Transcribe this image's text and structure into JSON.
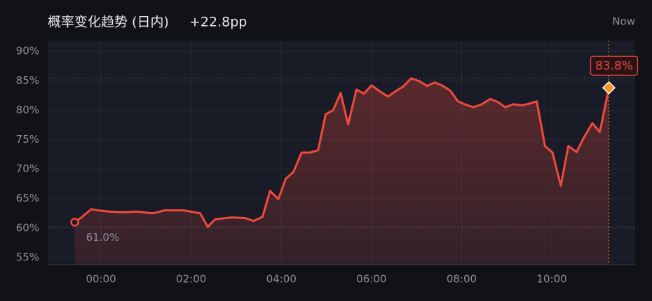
{
  "chart_data": {
    "type": "area",
    "title": "概率变化趋势 (日内)",
    "subtitle": "+22.8pp",
    "now_label": "Now",
    "x": [
      -35,
      -26,
      -13,
      -4,
      10,
      29,
      48,
      69,
      85,
      110,
      132,
      142,
      152,
      174,
      192,
      203,
      215,
      225,
      236,
      246,
      256,
      267,
      278,
      289,
      299,
      309,
      319,
      329,
      340,
      350,
      360,
      370,
      382,
      392,
      402,
      413,
      424,
      434,
      444,
      454,
      465,
      475,
      486,
      496,
      507,
      518,
      528,
      538,
      549,
      560,
      570,
      580,
      591,
      601,
      612,
      622,
      633,
      643,
      654,
      664,
      676
    ],
    "series": [
      {
        "name": "概率",
        "color": "#ef4a3c",
        "values": [
          61.0,
          61.8,
          63.2,
          63.0,
          62.8,
          62.7,
          62.8,
          62.5,
          63.0,
          63.0,
          62.5,
          60.2,
          61.5,
          61.8,
          61.7,
          61.2,
          61.9,
          66.3,
          64.9,
          68.4,
          69.5,
          72.8,
          72.8,
          73.2,
          79.3,
          80.0,
          82.9,
          77.6,
          83.5,
          82.8,
          84.2,
          83.3,
          82.3,
          83.2,
          84.0,
          85.4,
          84.9,
          84.1,
          84.7,
          84.2,
          83.3,
          81.5,
          80.9,
          80.5,
          81.0,
          81.9,
          81.4,
          80.5,
          81.0,
          80.8,
          81.1,
          81.5,
          73.9,
          72.8,
          67.2,
          73.9,
          72.9,
          75.4,
          77.8,
          76.3,
          83.8
        ],
        "value_labels": [
          "61.0%",
          null,
          null,
          null,
          null,
          null,
          null,
          null,
          null,
          null,
          null,
          null,
          null,
          null,
          null,
          null,
          null,
          null,
          null,
          null,
          null,
          null,
          null,
          null,
          null,
          null,
          null,
          null,
          null,
          null,
          null,
          null,
          null,
          null,
          null,
          null,
          null,
          null,
          null,
          null,
          null,
          null,
          null,
          null,
          null,
          null,
          null,
          null,
          null,
          null,
          null,
          null,
          null,
          null,
          null,
          null,
          null,
          null,
          null,
          null,
          "83.8%"
        ]
      }
    ],
    "xlim": [
      -71,
      711
    ],
    "xticks": [
      {
        "value": 0,
        "label": "00:00"
      },
      {
        "value": 120,
        "label": "02:00"
      },
      {
        "value": 240,
        "label": "04:00"
      },
      {
        "value": 360,
        "label": "06:00"
      },
      {
        "value": 480,
        "label": "08:00"
      },
      {
        "value": 600,
        "label": "10:00"
      }
    ],
    "ylim": [
      53.8,
      91.8
    ],
    "yticks": [
      {
        "value": 55,
        "label": "55%"
      },
      {
        "value": 60,
        "label": "60%"
      },
      {
        "value": 65,
        "label": "65%"
      },
      {
        "value": 70,
        "label": "70%"
      },
      {
        "value": 75,
        "label": "75%"
      },
      {
        "value": 80,
        "label": "80%"
      },
      {
        "value": 85,
        "label": "85%"
      },
      {
        "value": 90,
        "label": "90%"
      }
    ],
    "grid": true,
    "end_marker_color": "#f7931e"
  }
}
